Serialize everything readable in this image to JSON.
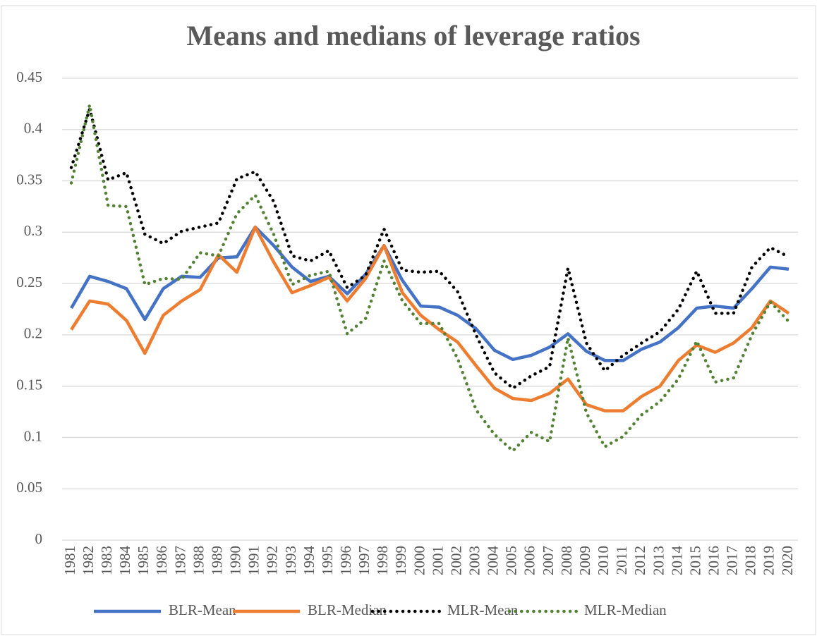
{
  "chart_data": {
    "type": "line",
    "title": "Means and medians of leverage ratios",
    "categories": [
      "1981",
      "1982",
      "1983",
      "1984",
      "1985",
      "1986",
      "1987",
      "1988",
      "1989",
      "1990",
      "1991",
      "1992",
      "1993",
      "1994",
      "1995",
      "1996",
      "1997",
      "1998",
      "1999",
      "2000",
      "2001",
      "2002",
      "2003",
      "2004",
      "2005",
      "2006",
      "2007",
      "2008",
      "2009",
      "2010",
      "2011",
      "2012",
      "2013",
      "2014",
      "2015",
      "2016",
      "2017",
      "2018",
      "2019",
      "2020"
    ],
    "series": [
      {
        "name": "BLR-Mean",
        "color": "#4472c4",
        "dash": "solid",
        "values": [
          0.226,
          0.257,
          0.252,
          0.245,
          0.215,
          0.245,
          0.257,
          0.256,
          0.275,
          0.276,
          0.305,
          0.287,
          0.266,
          0.252,
          0.257,
          0.24,
          0.259,
          0.287,
          0.253,
          0.228,
          0.227,
          0.219,
          0.206,
          0.185,
          0.176,
          0.18,
          0.188,
          0.201,
          0.184,
          0.175,
          0.175,
          0.186,
          0.193,
          0.207,
          0.226,
          0.228,
          0.226,
          0.245,
          0.266,
          0.264
        ]
      },
      {
        "name": "BLR-Median",
        "color": "#ed7d31",
        "dash": "solid",
        "values": [
          0.205,
          0.233,
          0.23,
          0.214,
          0.182,
          0.219,
          0.233,
          0.244,
          0.278,
          0.261,
          0.305,
          0.271,
          0.241,
          0.248,
          0.256,
          0.233,
          0.255,
          0.287,
          0.241,
          0.219,
          0.205,
          0.193,
          0.17,
          0.148,
          0.138,
          0.136,
          0.143,
          0.157,
          0.132,
          0.126,
          0.126,
          0.14,
          0.15,
          0.175,
          0.19,
          0.183,
          0.192,
          0.207,
          0.233,
          0.221
        ]
      },
      {
        "name": "MLR-Mean",
        "color": "#000000",
        "dash": "dotted",
        "values": [
          0.363,
          0.42,
          0.351,
          0.358,
          0.298,
          0.289,
          0.301,
          0.305,
          0.309,
          0.352,
          0.359,
          0.33,
          0.277,
          0.272,
          0.282,
          0.246,
          0.258,
          0.303,
          0.263,
          0.261,
          0.262,
          0.242,
          0.2,
          0.163,
          0.148,
          0.16,
          0.169,
          0.265,
          0.192,
          0.165,
          0.18,
          0.192,
          0.203,
          0.225,
          0.262,
          0.221,
          0.221,
          0.266,
          0.285,
          0.276
        ]
      },
      {
        "name": "MLR-Median",
        "color": "#548235",
        "dash": "dotted",
        "values": [
          0.348,
          0.424,
          0.326,
          0.325,
          0.249,
          0.255,
          0.254,
          0.28,
          0.277,
          0.318,
          0.336,
          0.298,
          0.249,
          0.258,
          0.262,
          0.201,
          0.216,
          0.272,
          0.233,
          0.211,
          0.211,
          0.177,
          0.127,
          0.103,
          0.087,
          0.105,
          0.096,
          0.197,
          0.124,
          0.091,
          0.101,
          0.122,
          0.135,
          0.157,
          0.194,
          0.154,
          0.158,
          0.2,
          0.232,
          0.213
        ]
      }
    ],
    "ylim": [
      0,
      0.45
    ],
    "yticks": [
      0,
      0.05,
      0.1,
      0.15,
      0.2,
      0.25,
      0.3,
      0.35,
      0.4,
      0.45
    ],
    "grid": true,
    "legend": "bottom"
  }
}
